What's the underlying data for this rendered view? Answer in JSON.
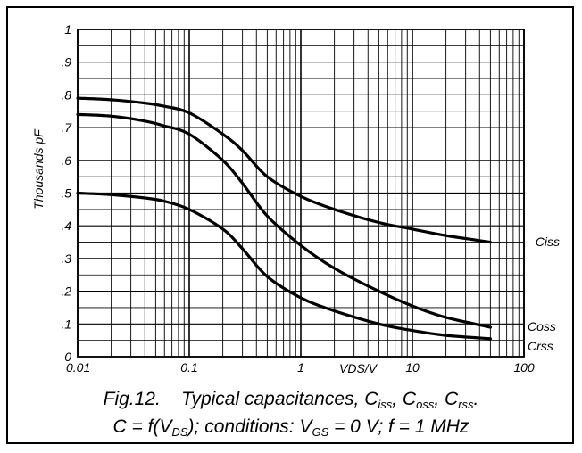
{
  "chart_data": {
    "type": "line",
    "xscale": "log",
    "xlim": [
      0.01,
      100
    ],
    "ylim": [
      0,
      1
    ],
    "grid": true,
    "xlabel": "VDS/V",
    "ylabel": "Thousands pF",
    "xticks": [
      "0.01",
      "0.1",
      "1",
      "10",
      "100"
    ],
    "xtick_values": [
      0.01,
      0.1,
      1,
      10,
      100
    ],
    "yticks": [
      "0",
      ".1",
      ".2",
      ".3",
      ".4",
      ".5",
      ".6",
      ".7",
      ".8",
      ".9",
      "1"
    ],
    "ytick_values": [
      0,
      0.1,
      0.2,
      0.3,
      0.4,
      0.5,
      0.6,
      0.7,
      0.8,
      0.9,
      1
    ],
    "series": [
      {
        "name": "Ciss",
        "x": [
          0.01,
          0.02,
          0.04,
          0.06,
          0.1,
          0.2,
          0.3,
          0.5,
          1,
          2,
          5,
          10,
          20,
          50
        ],
        "y": [
          0.79,
          0.785,
          0.775,
          0.765,
          0.745,
          0.68,
          0.63,
          0.55,
          0.49,
          0.45,
          0.41,
          0.39,
          0.37,
          0.35
        ]
      },
      {
        "name": "Coss",
        "x": [
          0.01,
          0.02,
          0.04,
          0.06,
          0.1,
          0.2,
          0.3,
          0.5,
          1,
          2,
          5,
          10,
          20,
          50
        ],
        "y": [
          0.74,
          0.735,
          0.72,
          0.705,
          0.68,
          0.6,
          0.53,
          0.43,
          0.34,
          0.27,
          0.2,
          0.155,
          0.12,
          0.09
        ]
      },
      {
        "name": "Crss",
        "x": [
          0.01,
          0.02,
          0.04,
          0.06,
          0.1,
          0.2,
          0.3,
          0.5,
          1,
          2,
          5,
          10,
          20,
          50
        ],
        "y": [
          0.5,
          0.495,
          0.485,
          0.475,
          0.45,
          0.39,
          0.33,
          0.245,
          0.18,
          0.14,
          0.1,
          0.08,
          0.065,
          0.055
        ]
      }
    ],
    "caption": {
      "line1": {
        "fig": "Fig.12.",
        "text": "Typical capacitances, C",
        "sub1": "iss",
        "sep1": ", C",
        "sub2": "oss",
        "sep2": ", C",
        "sub3": "rss",
        "end": "."
      },
      "line2": {
        "a": "C = f(V",
        "sub1": "DS",
        "b": "); conditions: V",
        "sub2": "GS",
        "c": " = 0 V; f = 1 MHz"
      }
    }
  }
}
